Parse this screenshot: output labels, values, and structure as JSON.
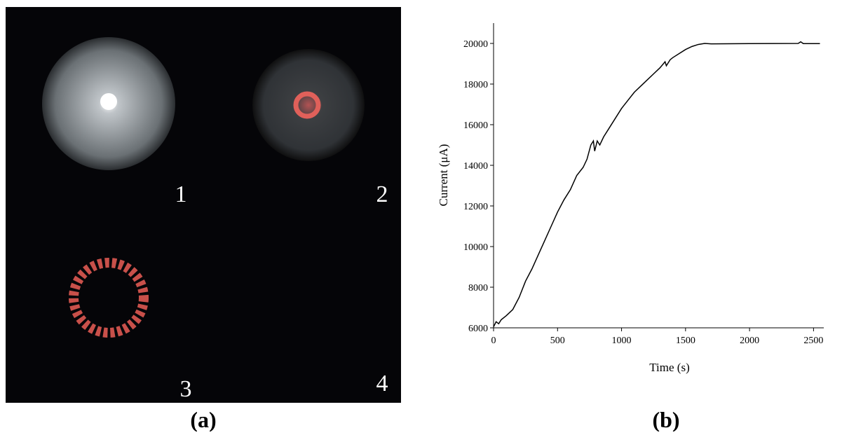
{
  "photo_panel": {
    "label": "(a)",
    "photo_labels": [
      "1",
      "2",
      "3",
      "4"
    ]
  },
  "chart_panel": {
    "label": "(b)"
  },
  "chart_data": {
    "type": "line",
    "x_label": "Time (s)",
    "y_label": "Current (μA)",
    "xlim": [
      0,
      2580
    ],
    "xticks": [
      0,
      500,
      1000,
      1500,
      2000,
      2500
    ],
    "ylim": [
      6000,
      21000
    ],
    "yticks": [
      6000,
      8000,
      10000,
      12000,
      14000,
      16000,
      18000,
      20000
    ],
    "series": [
      {
        "color": "#000000",
        "x": [
          0,
          20,
          40,
          60,
          100,
          150,
          200,
          250,
          300,
          350,
          400,
          450,
          500,
          550,
          600,
          650,
          700,
          730,
          760,
          780,
          790,
          810,
          830,
          860,
          900,
          950,
          1000,
          1050,
          1100,
          1150,
          1200,
          1250,
          1300,
          1340,
          1350,
          1380,
          1400,
          1450,
          1500,
          1550,
          1600,
          1650,
          1700,
          2000,
          2380,
          2400,
          2420,
          2550
        ],
        "values": [
          6050,
          6300,
          6200,
          6400,
          6600,
          6900,
          7500,
          8300,
          8900,
          9600,
          10300,
          11000,
          11700,
          12300,
          12800,
          13500,
          13900,
          14300,
          15000,
          15200,
          14700,
          15200,
          15000,
          15400,
          15800,
          16300,
          16800,
          17200,
          17600,
          17900,
          18200,
          18500,
          18800,
          19100,
          18900,
          19200,
          19300,
          19500,
          19700,
          19850,
          19950,
          20000,
          19980,
          19990,
          20000,
          20080,
          19990,
          19990
        ]
      }
    ]
  }
}
